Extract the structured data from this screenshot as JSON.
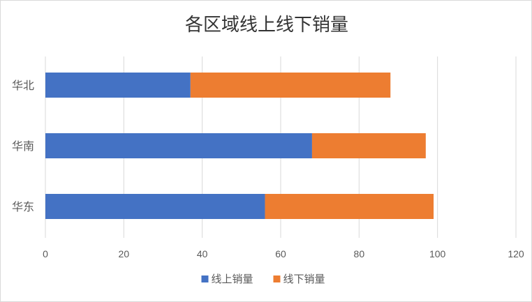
{
  "chart_data": {
    "type": "bar",
    "orientation": "horizontal",
    "stacked": true,
    "title": "各区域线上线下销量",
    "categories": [
      "华北",
      "华南",
      "华东"
    ],
    "series": [
      {
        "name": "线上销量",
        "values": [
          37,
          68,
          56
        ],
        "color": "#4472C4"
      },
      {
        "name": "线下销量",
        "values": [
          51,
          29,
          43
        ],
        "color": "#ED7D31"
      }
    ],
    "xlim": [
      0,
      120
    ],
    "xticks": [
      0,
      20,
      40,
      60,
      80,
      100,
      120
    ],
    "grid": true,
    "legend_position": "bottom"
  }
}
